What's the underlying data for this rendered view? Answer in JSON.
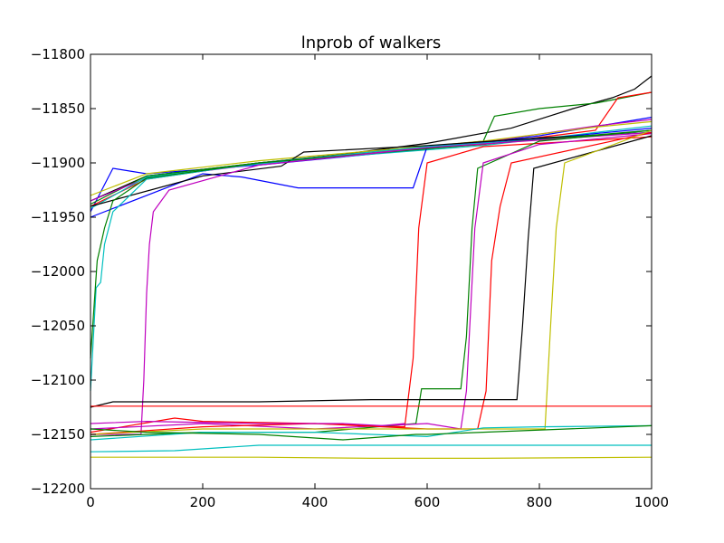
{
  "chart_data": {
    "type": "line",
    "title": "lnprob of walkers",
    "xlabel": "",
    "ylabel": "",
    "xlim": [
      0,
      1000
    ],
    "ylim": [
      -12200,
      -11800
    ],
    "x_ticks": [
      0,
      200,
      400,
      600,
      800,
      1000
    ],
    "y_ticks": [
      -11800,
      -11850,
      -11900,
      -11950,
      -12000,
      -12050,
      -12100,
      -12150,
      -12200
    ],
    "x_tick_labels": [
      "0",
      "200",
      "400",
      "600",
      "800",
      "1000"
    ],
    "y_tick_labels": [
      "−11800",
      "−11850",
      "−11900",
      "−11950",
      "−12000",
      "−12050",
      "−12100",
      "−12150",
      "−12200"
    ],
    "grid": false,
    "legend": "none",
    "colors": [
      "#0000ff",
      "#008000",
      "#ff0000",
      "#00bfbf",
      "#bf00bf",
      "#bfbf00",
      "#000000"
    ],
    "series": [
      {
        "color": "#000000",
        "points": [
          [
            0,
            -11935
          ],
          [
            100,
            -11912
          ],
          [
            300,
            -11900
          ],
          [
            450,
            -11892
          ],
          [
            600,
            -11882
          ],
          [
            750,
            -11868
          ],
          [
            860,
            -11850
          ],
          [
            930,
            -11840
          ],
          [
            970,
            -11832
          ],
          [
            1000,
            -11820
          ]
        ]
      },
      {
        "color": "#0000ff",
        "points": [
          [
            0,
            -11945
          ],
          [
            40,
            -11905
          ],
          [
            100,
            -11910
          ],
          [
            300,
            -11902
          ],
          [
            400,
            -11897
          ],
          [
            600,
            -11887
          ],
          [
            800,
            -11875
          ],
          [
            1000,
            -11858
          ]
        ]
      },
      {
        "color": "#008000",
        "points": [
          [
            0,
            -11938
          ],
          [
            100,
            -11912
          ],
          [
            300,
            -11900
          ],
          [
            500,
            -11890
          ],
          [
            700,
            -11880
          ],
          [
            720,
            -11857
          ],
          [
            800,
            -11850
          ],
          [
            900,
            -11845
          ],
          [
            1000,
            -11835
          ]
        ]
      },
      {
        "color": "#ff0000",
        "points": [
          [
            0,
            -11940
          ],
          [
            100,
            -11915
          ],
          [
            300,
            -11900
          ],
          [
            500,
            -11890
          ],
          [
            700,
            -11883
          ],
          [
            900,
            -11870
          ],
          [
            940,
            -11840
          ],
          [
            1000,
            -11835
          ]
        ]
      },
      {
        "color": "#bf00bf",
        "points": [
          [
            0,
            -11935
          ],
          [
            100,
            -11914
          ],
          [
            300,
            -11901
          ],
          [
            500,
            -11891
          ],
          [
            700,
            -11881
          ],
          [
            900,
            -11866
          ],
          [
            1000,
            -11860
          ]
        ]
      },
      {
        "color": "#bfbf00",
        "points": [
          [
            0,
            -11930
          ],
          [
            100,
            -11910
          ],
          [
            300,
            -11898
          ],
          [
            500,
            -11889
          ],
          [
            700,
            -11880
          ],
          [
            900,
            -11867
          ],
          [
            1000,
            -11862
          ]
        ]
      },
      {
        "color": "#00bfbf",
        "points": [
          [
            0,
            -11942
          ],
          [
            100,
            -11913
          ],
          [
            300,
            -11901
          ],
          [
            500,
            -11892
          ],
          [
            700,
            -11884
          ],
          [
            900,
            -11872
          ],
          [
            1000,
            -11866
          ]
        ]
      },
      {
        "color": "#0000ff",
        "points": [
          [
            0,
            -11950
          ],
          [
            200,
            -11910
          ],
          [
            270,
            -11913
          ],
          [
            370,
            -11923
          ],
          [
            575,
            -11923
          ],
          [
            600,
            -11885
          ],
          [
            800,
            -11878
          ],
          [
            1000,
            -11868
          ]
        ]
      },
      {
        "color": "#000000",
        "points": [
          [
            0,
            -11940
          ],
          [
            200,
            -11912
          ],
          [
            340,
            -11903
          ],
          [
            380,
            -11890
          ],
          [
            600,
            -11884
          ],
          [
            800,
            -11877
          ],
          [
            1000,
            -11872
          ]
        ]
      },
      {
        "color": "#00bfbf",
        "points": [
          [
            0,
            -12110
          ],
          [
            10,
            -12015
          ],
          [
            18,
            -12010
          ],
          [
            25,
            -11975
          ],
          [
            40,
            -11945
          ],
          [
            100,
            -11915
          ],
          [
            300,
            -11900
          ],
          [
            600,
            -11885
          ],
          [
            1000,
            -11872
          ]
        ]
      },
      {
        "color": "#008000",
        "points": [
          [
            0,
            -12080
          ],
          [
            12,
            -11990
          ],
          [
            25,
            -11960
          ],
          [
            40,
            -11935
          ],
          [
            100,
            -11914
          ],
          [
            300,
            -11900
          ],
          [
            600,
            -11887
          ],
          [
            1000,
            -11870
          ]
        ]
      },
      {
        "color": "#bf00bf",
        "points": [
          [
            0,
            -12150
          ],
          [
            90,
            -12150
          ],
          [
            95,
            -12100
          ],
          [
            100,
            -12020
          ],
          [
            105,
            -11975
          ],
          [
            112,
            -11945
          ],
          [
            140,
            -11925
          ],
          [
            300,
            -11902
          ],
          [
            600,
            -11886
          ],
          [
            1000,
            -11872
          ]
        ]
      },
      {
        "color": "#ff0000",
        "points": [
          [
            0,
            -12148
          ],
          [
            150,
            -12135
          ],
          [
            200,
            -12138
          ],
          [
            400,
            -12140
          ],
          [
            560,
            -12143
          ],
          [
            575,
            -12080
          ],
          [
            585,
            -11960
          ],
          [
            600,
            -11900
          ],
          [
            700,
            -11885
          ],
          [
            1000,
            -11876
          ]
        ]
      },
      {
        "color": "#008000",
        "points": [
          [
            0,
            -12152
          ],
          [
            200,
            -12148
          ],
          [
            400,
            -12148
          ],
          [
            580,
            -12140
          ],
          [
            590,
            -12108
          ],
          [
            660,
            -12108
          ],
          [
            670,
            -12060
          ],
          [
            680,
            -11960
          ],
          [
            690,
            -11905
          ],
          [
            800,
            -11880
          ],
          [
            1000,
            -11870
          ]
        ]
      },
      {
        "color": "#bf00bf",
        "points": [
          [
            0,
            -12145
          ],
          [
            200,
            -12140
          ],
          [
            400,
            -12145
          ],
          [
            600,
            -12140
          ],
          [
            660,
            -12145
          ],
          [
            670,
            -12110
          ],
          [
            685,
            -11960
          ],
          [
            700,
            -11900
          ],
          [
            800,
            -11883
          ],
          [
            1000,
            -11873
          ]
        ]
      },
      {
        "color": "#ff0000",
        "points": [
          [
            0,
            -12150
          ],
          [
            200,
            -12143
          ],
          [
            400,
            -12140
          ],
          [
            600,
            -12145
          ],
          [
            690,
            -12145
          ],
          [
            705,
            -12110
          ],
          [
            715,
            -11990
          ],
          [
            730,
            -11940
          ],
          [
            750,
            -11900
          ],
          [
            1000,
            -11872
          ]
        ]
      },
      {
        "color": "#000000",
        "points": [
          [
            0,
            -12125
          ],
          [
            40,
            -12120
          ],
          [
            300,
            -12120
          ],
          [
            500,
            -12118
          ],
          [
            760,
            -12118
          ],
          [
            770,
            -12050
          ],
          [
            780,
            -11970
          ],
          [
            790,
            -11905
          ],
          [
            1000,
            -11875
          ]
        ]
      },
      {
        "color": "#bfbf00",
        "points": [
          [
            0,
            -12150
          ],
          [
            200,
            -12145
          ],
          [
            400,
            -12145
          ],
          [
            600,
            -12145
          ],
          [
            810,
            -12145
          ],
          [
            820,
            -12050
          ],
          [
            830,
            -11960
          ],
          [
            845,
            -11900
          ],
          [
            1000,
            -11870
          ]
        ]
      },
      {
        "color": "#ff0000",
        "points": [
          [
            0,
            -12124
          ],
          [
            1000,
            -12124
          ]
        ]
      },
      {
        "color": "#00bfbf",
        "points": [
          [
            0,
            -12155
          ],
          [
            200,
            -12148
          ],
          [
            400,
            -12148
          ],
          [
            600,
            -12152
          ],
          [
            700,
            -12144
          ],
          [
            800,
            -12143
          ],
          [
            1000,
            -12142
          ]
        ]
      },
      {
        "color": "#00bfbf",
        "points": [
          [
            0,
            -12166
          ],
          [
            150,
            -12165
          ],
          [
            300,
            -12160
          ],
          [
            500,
            -12160
          ],
          [
            700,
            -12160
          ],
          [
            1000,
            -12160
          ]
        ]
      },
      {
        "color": "#bfbf00",
        "points": [
          [
            0,
            -12171
          ],
          [
            300,
            -12171
          ],
          [
            500,
            -12172
          ],
          [
            700,
            -12172
          ],
          [
            1000,
            -12171
          ]
        ]
      },
      {
        "color": "#008000",
        "points": [
          [
            0,
            -12145
          ],
          [
            100,
            -12148
          ],
          [
            300,
            -12150
          ],
          [
            450,
            -12155
          ],
          [
            580,
            -12150
          ],
          [
            600,
            -12150
          ],
          [
            1000,
            -12142
          ]
        ]
      },
      {
        "color": "#bf00bf",
        "points": [
          [
            0,
            -12140
          ],
          [
            100,
            -12138
          ],
          [
            300,
            -12140
          ],
          [
            450,
            -12140
          ],
          [
            520,
            -12142
          ],
          [
            560,
            -12140
          ]
        ]
      }
    ]
  }
}
